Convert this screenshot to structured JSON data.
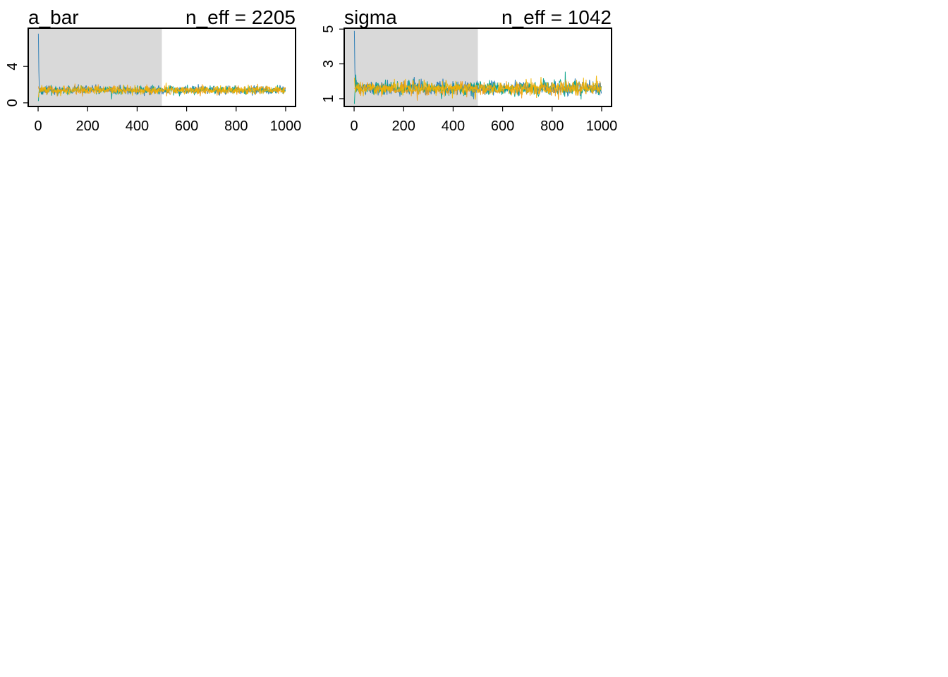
{
  "colors": {
    "warmup_shade": "#d9d9d9",
    "frame": "#000000",
    "chain_colors": [
      "#1f77b4",
      "#00a087",
      "#f39c12",
      "#f0b400"
    ]
  },
  "chart_data": [
    {
      "type": "line",
      "title": "a_bar",
      "annotation": "n_eff = 2205",
      "x_ticks": [
        "0",
        "200",
        "400",
        "600",
        "800",
        "1000"
      ],
      "y_ticks": [
        "0",
        "4"
      ],
      "xlim": [
        -40,
        1040
      ],
      "ylim": [
        -0.4,
        8.2
      ],
      "warmup": [
        0,
        500
      ],
      "n_iter": 1000,
      "chains": 4,
      "typical_value": 1.4,
      "typical_spread": 0.22,
      "initial_values": [
        7.6,
        0.2,
        1.8,
        0.6
      ]
    },
    {
      "type": "line",
      "title": "sigma",
      "annotation": "n_eff = 1042",
      "x_ticks": [
        "0",
        "200",
        "400",
        "600",
        "800",
        "1000"
      ],
      "y_ticks": [
        "1",
        "3",
        "5"
      ],
      "xlim": [
        -40,
        1040
      ],
      "ylim": [
        0.55,
        5.05
      ],
      "warmup": [
        0,
        500
      ],
      "n_iter": 1000,
      "chains": 4,
      "typical_value": 1.6,
      "typical_spread": 0.2,
      "initial_values": [
        4.9,
        0.7,
        1.6,
        2.2
      ]
    }
  ]
}
